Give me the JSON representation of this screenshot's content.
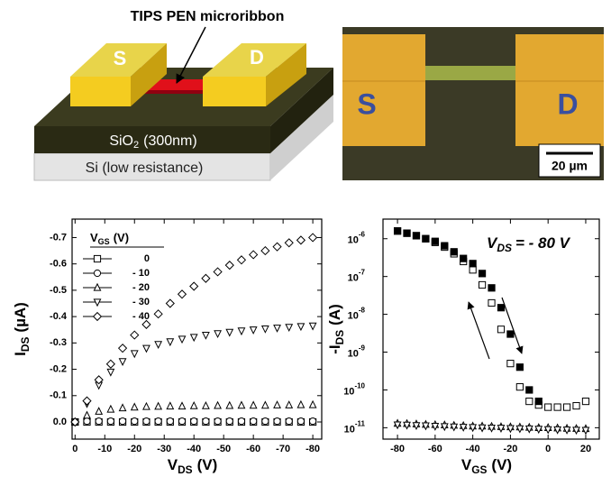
{
  "schematic": {
    "title": "TIPS PEN microribbon",
    "source": "S",
    "drain": "D",
    "oxide": "SiO",
    "oxide_sub": "2",
    "oxide_rest": "(300nm)",
    "substrate": "Si (low resistance)"
  },
  "micrograph": {
    "source": "S",
    "drain": "D",
    "scale_bar": "20 µm"
  },
  "chart_data": [
    {
      "type": "scatter",
      "xlabel": "V",
      "xlabel_sub": "DS",
      "xlabel_unit": "(V)",
      "ylabel": "I",
      "ylabel_sub": "DS",
      "ylabel_unit": "(µA)",
      "legend_title": "V",
      "legend_title_sub": "GS",
      "legend_title_unit": "(V)",
      "legend": "upper-left",
      "grid": false,
      "log_y": false,
      "xlim": [
        1,
        -83
      ],
      "ylim": [
        0.065,
        -0.77
      ],
      "xticks": [
        0,
        -10,
        -20,
        -30,
        -40,
        -50,
        -60,
        -70,
        -80
      ],
      "yticks": [
        {
          "value": 0,
          "label": "0.0"
        },
        -0.1,
        -0.2,
        -0.3,
        -0.4,
        -0.5,
        -0.6,
        -0.7
      ],
      "x": [
        0,
        -4,
        -8,
        -12,
        -16,
        -20,
        -24,
        -28,
        -32,
        -36,
        -40,
        -44,
        -48,
        -52,
        -56,
        -60,
        -64,
        -68,
        -72,
        -76,
        -80
      ],
      "series": [
        {
          "name": "0",
          "color": "#000000",
          "marker": "square",
          "filled": false,
          "values": [
            0,
            0,
            0,
            0,
            0,
            0,
            0,
            0,
            0,
            0,
            0,
            0,
            0,
            0,
            0,
            0,
            0,
            0,
            0,
            0,
            0
          ]
        },
        {
          "name": "- 10",
          "color": "#000000",
          "marker": "circle",
          "filled": false,
          "values": [
            0,
            -0.003,
            -0.003,
            -0.003,
            -0.003,
            -0.003,
            -0.003,
            -0.003,
            -0.003,
            -0.003,
            -0.003,
            -0.003,
            -0.003,
            -0.003,
            -0.003,
            -0.003,
            -0.003,
            -0.003,
            -0.003,
            -0.003,
            -0.003
          ]
        },
        {
          "name": "- 20",
          "color": "#000000",
          "marker": "triangle-up",
          "filled": false,
          "values": [
            0,
            -0.025,
            -0.04,
            -0.048,
            -0.053,
            -0.056,
            -0.058,
            -0.059,
            -0.06,
            -0.06,
            -0.061,
            -0.061,
            -0.062,
            -0.062,
            -0.063,
            -0.063,
            -0.063,
            -0.064,
            -0.064,
            -0.065,
            -0.065
          ]
        },
        {
          "name": "- 30",
          "color": "#000000",
          "marker": "triangle-down",
          "filled": false,
          "values": [
            0,
            -0.07,
            -0.14,
            -0.19,
            -0.23,
            -0.26,
            -0.28,
            -0.295,
            -0.305,
            -0.315,
            -0.322,
            -0.33,
            -0.336,
            -0.341,
            -0.346,
            -0.35,
            -0.354,
            -0.357,
            -0.36,
            -0.363,
            -0.365
          ]
        },
        {
          "name": "- 40",
          "color": "#000000",
          "marker": "diamond",
          "filled": false,
          "values": [
            0,
            -0.08,
            -0.16,
            -0.22,
            -0.28,
            -0.33,
            -0.37,
            -0.41,
            -0.45,
            -0.485,
            -0.515,
            -0.545,
            -0.57,
            -0.595,
            -0.615,
            -0.635,
            -0.65,
            -0.665,
            -0.68,
            -0.69,
            -0.7
          ]
        }
      ]
    },
    {
      "type": "scatter",
      "xlabel": "V",
      "xlabel_sub": "GS",
      "xlabel_unit": "(V)",
      "ylabel": "-I",
      "ylabel_sub": "DS",
      "ylabel_unit": "(A)",
      "annotation": "V",
      "annotation_sub": "DS",
      "annotation_rest": "= - 80 V",
      "grid": false,
      "log_y": true,
      "xlim": [
        -87.7,
        27.2
      ],
      "ylim": [
        5e-12,
        3.3e-06
      ],
      "xticks": [
        -80,
        -60,
        -40,
        -20,
        0,
        20
      ],
      "yticks": [
        {
          "value": 1e-11,
          "label": "10",
          "exponent": "-11"
        },
        {
          "value": 1e-10,
          "label": "10",
          "exponent": "-10"
        },
        {
          "value": 1e-09,
          "label": "10",
          "exponent": "-9"
        },
        {
          "value": 1e-08,
          "label": "10",
          "exponent": "-8"
        },
        {
          "value": 1e-07,
          "label": "10",
          "exponent": "-7"
        },
        {
          "value": 1e-06,
          "label": "10",
          "exponent": "-6"
        }
      ],
      "x": [
        -80,
        -75,
        -70,
        -65,
        -60,
        -55,
        -50,
        -45,
        -40,
        -35,
        -30,
        -25,
        -20,
        -15,
        -10,
        -5,
        0,
        5,
        10,
        15,
        20
      ],
      "series": [
        {
          "color": "#000000",
          "marker": "square",
          "filled": false,
          "values": [
            1.6e-06,
            1.4e-06,
            1.2e-06,
            1e-06,
            8e-07,
            6e-07,
            4e-07,
            2.5e-07,
            1.5e-07,
            6e-08,
            2e-08,
            4e-09,
            5e-10,
            1.2e-10,
            5e-11,
            4e-11,
            3.5e-11,
            3.5e-11,
            3.5e-11,
            3.8e-11,
            5e-11
          ]
        },
        {
          "color": "#000000",
          "marker": "square",
          "filled": true,
          "values": [
            1.6e-06,
            1.4e-06,
            1.2e-06,
            1e-06,
            8.5e-07,
            6.5e-07,
            4.5e-07,
            3e-07,
            2.2e-07,
            1.2e-07,
            5e-08,
            1.5e-08,
            3e-09,
            4e-10,
            1e-10,
            5e-11,
            null,
            null,
            null,
            null,
            null
          ]
        },
        {
          "color": "#000000",
          "marker": "triangle-up",
          "filled": false,
          "values": [
            1.3e-11,
            1.28e-11,
            1.25e-11,
            1.22e-11,
            1.2e-11,
            1.18e-11,
            1.15e-11,
            1.13e-11,
            1.1e-11,
            1.1e-11,
            1.08e-11,
            1.06e-11,
            1.05e-11,
            1.04e-11,
            1.02e-11,
            1e-11,
            1e-11,
            9.8e-12,
            9.6e-12,
            9.5e-12,
            9.4e-12
          ]
        },
        {
          "color": "#000000",
          "marker": "triangle-down",
          "filled": false,
          "values": [
            1.2e-11,
            1.18e-11,
            1.15e-11,
            1.13e-11,
            1.1e-11,
            1.08e-11,
            1.06e-11,
            1.04e-11,
            1.02e-11,
            1e-11,
            9.9e-12,
            9.8e-12,
            9.6e-12,
            9.5e-12,
            9.4e-12,
            9.2e-12,
            9e-12,
            8.9e-12,
            8.8e-12,
            8.7e-12,
            8.6e-12
          ]
        }
      ]
    }
  ]
}
